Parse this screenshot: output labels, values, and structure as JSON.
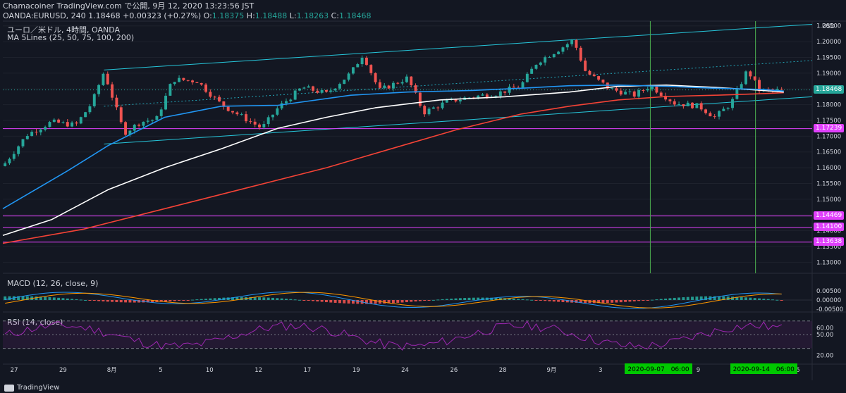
{
  "header": {
    "line1": "Chamacoiner TradingView.com で公開, 9月 12, 2020 13:23:56 JST",
    "symbol": "OANDA:EURUSD, 240",
    "last": "1.18468",
    "change": "+0.00323 (+0.27%)",
    "open_label": "O:",
    "open": "1.18375",
    "high_label": "H:",
    "high": "1.18488",
    "low_label": "L:",
    "low": "1.18263",
    "close_label": "C:",
    "close": "1.18468"
  },
  "legend": {
    "title": "ユーロ／米ドル, 4時間, OANDA",
    "ma": "MA 5Lines (25, 50, 75, 100, 200)"
  },
  "macd_legend": "MACD (12, 26, close, 9)",
  "rsi_legend": "RSI (14, close)",
  "footer": "TradingView",
  "colors": {
    "background": "#131722",
    "up": "#26a69a",
    "down": "#ef5350",
    "ma_blue": "#2196f3",
    "ma_white": "#ffffff",
    "ma_red": "#f44336",
    "channel": "#26c6da",
    "support": "#e040fb",
    "vline": "#4caf50",
    "macd": "#2196f3",
    "signal": "#ff9800",
    "rsi": "#9c27b0"
  },
  "chart_data": {
    "type": "candlestick",
    "price_axis_unit": "USD",
    "y_ticks": [
      "1.20500",
      "1.20000",
      "1.19500",
      "1.19000",
      "1.18500",
      "1.18000",
      "1.17500",
      "1.17000",
      "1.16500",
      "1.16000",
      "1.15500",
      "1.15000",
      "1.14500",
      "1.14000",
      "1.13500",
      "1.13000"
    ],
    "ylim": [
      1.1265,
      1.2065
    ],
    "x_ticks": [
      "27",
      "29",
      "8月",
      "5",
      "10",
      "12",
      "17",
      "19",
      "24",
      "26",
      "28",
      "9月",
      "3",
      "7",
      "9",
      "14",
      "16"
    ],
    "price_tags": [
      {
        "label": "1.18468",
        "value": 1.18468,
        "kind": "last"
      },
      {
        "label": "1.17239",
        "value": 1.17239,
        "kind": "level"
      },
      {
        "label": "1.14469",
        "value": 1.14469,
        "kind": "level"
      },
      {
        "label": "1.14100",
        "value": 1.141,
        "kind": "level"
      },
      {
        "label": "1.13638",
        "value": 1.13638,
        "kind": "level"
      }
    ],
    "date_tags": [
      "2020-09-07　06:00",
      "2020-09-14　06:00"
    ],
    "macd_ticks": [
      "0.00500",
      "0.00000",
      "-0.00500"
    ],
    "rsi_ticks": [
      "60.00",
      "50.00",
      "20.00"
    ],
    "channel": {
      "upper": [
        [
          0.125,
          1.191
        ],
        [
          1.0,
          1.2055
        ]
      ],
      "lower": [
        [
          0.125,
          1.1675
        ],
        [
          1.0,
          1.1825
        ]
      ],
      "mid": [
        [
          0.125,
          1.1795
        ],
        [
          1.0,
          1.194
        ]
      ]
    },
    "key_points": [
      [
        0.0,
        1.1605
      ],
      [
        0.03,
        1.1705
      ],
      [
        0.06,
        1.1745
      ],
      [
        0.09,
        1.1735
      ],
      [
        0.11,
        1.1805
      ],
      [
        0.125,
        1.1905
      ],
      [
        0.15,
        1.171
      ],
      [
        0.17,
        1.1745
      ],
      [
        0.19,
        1.1755
      ],
      [
        0.21,
        1.188
      ],
      [
        0.24,
        1.1875
      ],
      [
        0.27,
        1.18
      ],
      [
        0.29,
        1.177
      ],
      [
        0.32,
        1.1725
      ],
      [
        0.34,
        1.179
      ],
      [
        0.37,
        1.1855
      ],
      [
        0.4,
        1.1835
      ],
      [
        0.43,
        1.19
      ],
      [
        0.445,
        1.196
      ],
      [
        0.465,
        1.1845
      ],
      [
        0.5,
        1.1885
      ],
      [
        0.52,
        1.1775
      ],
      [
        0.55,
        1.181
      ],
      [
        0.58,
        1.1825
      ],
      [
        0.61,
        1.1835
      ],
      [
        0.64,
        1.186
      ],
      [
        0.66,
        1.1935
      ],
      [
        0.69,
        1.198
      ],
      [
        0.705,
        1.2005
      ],
      [
        0.72,
        1.1905
      ],
      [
        0.75,
        1.185
      ],
      [
        0.78,
        1.183
      ],
      [
        0.8,
        1.186
      ],
      [
        0.83,
        1.1805
      ],
      [
        0.86,
        1.1795
      ],
      [
        0.88,
        1.176
      ],
      [
        0.9,
        1.1805
      ],
      [
        0.92,
        1.191
      ],
      [
        0.935,
        1.1845
      ],
      [
        0.95,
        1.1845
      ],
      [
        0.965,
        1.1845
      ]
    ],
    "ma_blue": [
      [
        0.0,
        1.147
      ],
      [
        0.08,
        1.159
      ],
      [
        0.13,
        1.167
      ],
      [
        0.2,
        1.176
      ],
      [
        0.27,
        1.1795
      ],
      [
        0.34,
        1.1798
      ],
      [
        0.43,
        1.183
      ],
      [
        0.5,
        1.184
      ],
      [
        0.58,
        1.1845
      ],
      [
        0.64,
        1.1852
      ],
      [
        0.7,
        1.186
      ],
      [
        0.76,
        1.1862
      ],
      [
        0.82,
        1.1858
      ],
      [
        0.88,
        1.1852
      ],
      [
        0.94,
        1.1848
      ],
      [
        0.965,
        1.1843
      ]
    ],
    "ma_white": [
      [
        0.0,
        1.1385
      ],
      [
        0.06,
        1.1435
      ],
      [
        0.13,
        1.153
      ],
      [
        0.2,
        1.16
      ],
      [
        0.27,
        1.166
      ],
      [
        0.34,
        1.1725
      ],
      [
        0.4,
        1.176
      ],
      [
        0.46,
        1.179
      ],
      [
        0.54,
        1.1815
      ],
      [
        0.62,
        1.1825
      ],
      [
        0.7,
        1.184
      ],
      [
        0.76,
        1.1858
      ],
      [
        0.82,
        1.1862
      ],
      [
        0.88,
        1.1855
      ],
      [
        0.94,
        1.1845
      ],
      [
        0.965,
        1.184
      ]
    ],
    "ma_red": [
      [
        0.0,
        1.136
      ],
      [
        0.1,
        1.1405
      ],
      [
        0.2,
        1.147
      ],
      [
        0.3,
        1.1535
      ],
      [
        0.4,
        1.16
      ],
      [
        0.48,
        1.166
      ],
      [
        0.56,
        1.172
      ],
      [
        0.64,
        1.177
      ],
      [
        0.7,
        1.1795
      ],
      [
        0.76,
        1.1815
      ],
      [
        0.82,
        1.1826
      ],
      [
        0.88,
        1.183
      ],
      [
        0.94,
        1.1835
      ],
      [
        0.965,
        1.1838
      ]
    ],
    "vlines": [
      0.8,
      0.93
    ]
  }
}
